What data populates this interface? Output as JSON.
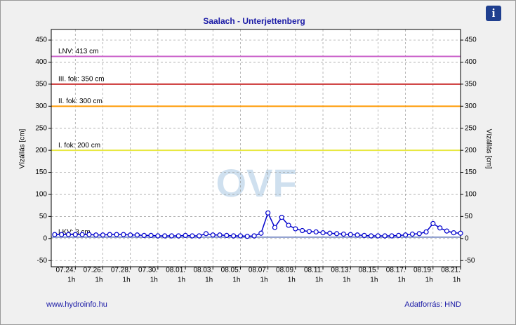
{
  "chart_data": {
    "type": "line",
    "title": "Saalach - Unterjettenberg",
    "y_label": "Vízállás [cm]",
    "y2_label": "Vízállás [cm]",
    "watermark": "OVF",
    "footer_left": "www.hydroinfo.hu",
    "footer_right": "Adatforrás: HND",
    "info_icon": "i",
    "ylim": [
      -64,
      474
    ],
    "yticks": [
      -50,
      0,
      50,
      100,
      150,
      200,
      250,
      300,
      350,
      400,
      450
    ],
    "grid": true,
    "xlim": [
      "07.22. 7h",
      "08.21. 1h"
    ],
    "xticks": [
      {
        "date": "07.24.",
        "time": "1h"
      },
      {
        "date": "07.26.",
        "time": "1h"
      },
      {
        "date": "07.28.",
        "time": "1h"
      },
      {
        "date": "07.30.",
        "time": "1h"
      },
      {
        "date": "08.01.",
        "time": "1h"
      },
      {
        "date": "08.03.",
        "time": "1h"
      },
      {
        "date": "08.05.",
        "time": "1h"
      },
      {
        "date": "08.07.",
        "time": "1h"
      },
      {
        "date": "08.09.",
        "time": "1h"
      },
      {
        "date": "08.11.",
        "time": "1h"
      },
      {
        "date": "08.13.",
        "time": "1h"
      },
      {
        "date": "08.15.",
        "time": "1h"
      },
      {
        "date": "08.17.",
        "time": "1h"
      },
      {
        "date": "08.19.",
        "time": "1h"
      },
      {
        "date": "08.21.",
        "time": "1h"
      }
    ],
    "thresholds": [
      {
        "label": "LNV: 413 cm",
        "value": 413,
        "color": "#cc66cc"
      },
      {
        "label": "III. fok: 350 cm",
        "value": 350,
        "color": "#cc3333"
      },
      {
        "label": "II. fok: 300 cm",
        "value": 300,
        "color": "#ff9900"
      },
      {
        "label": "I. fok: 200 cm",
        "value": 200,
        "color": "#e8e840"
      },
      {
        "label": "LKV: 3 cm",
        "value": 3,
        "color": "#8899cc"
      }
    ],
    "x": [
      "07.22. 13h",
      "07.23. 1h",
      "07.23. 13h",
      "07.24. 1h",
      "07.24. 13h",
      "07.25. 1h",
      "07.25. 13h",
      "07.26. 1h",
      "07.26. 13h",
      "07.27. 1h",
      "07.27. 13h",
      "07.28. 1h",
      "07.28. 13h",
      "07.29. 1h",
      "07.29. 13h",
      "07.30. 1h",
      "07.30. 13h",
      "07.31. 1h",
      "07.31. 13h",
      "08.01. 1h",
      "08.01. 13h",
      "08.02. 1h",
      "08.02. 13h",
      "08.03. 1h",
      "08.03. 13h",
      "08.04. 1h",
      "08.04. 13h",
      "08.05. 1h",
      "08.05. 13h",
      "08.06. 1h",
      "08.06. 13h",
      "08.07. 1h",
      "08.07. 13h",
      "08.08. 1h",
      "08.08. 13h",
      "08.09. 1h",
      "08.09. 13h",
      "08.10. 1h",
      "08.10. 13h",
      "08.11. 1h",
      "08.11. 13h",
      "08.12. 1h",
      "08.12. 13h",
      "08.13. 1h",
      "08.13. 13h",
      "08.14. 1h",
      "08.14. 13h",
      "08.15. 1h",
      "08.15. 13h",
      "08.16. 1h",
      "08.16. 13h",
      "08.17. 1h",
      "08.17. 13h",
      "08.18. 1h",
      "08.18. 13h",
      "08.19. 1h",
      "08.19. 13h",
      "08.20. 1h",
      "08.20. 13h",
      "08.21. 1h"
    ],
    "series": [
      {
        "color": "#0000cc",
        "values": [
          9,
          9,
          9,
          9,
          9,
          9,
          8,
          8,
          9,
          9,
          9,
          8,
          8,
          7,
          7,
          6,
          6,
          6,
          6,
          7,
          6,
          6,
          11,
          8,
          8,
          7,
          6,
          6,
          5,
          6,
          12,
          58,
          25,
          48,
          30,
          22,
          18,
          16,
          15,
          13,
          12,
          11,
          10,
          9,
          8,
          7,
          6,
          6,
          6,
          6,
          7,
          8,
          10,
          11,
          15,
          34,
          24,
          17,
          13,
          12
        ]
      }
    ]
  }
}
